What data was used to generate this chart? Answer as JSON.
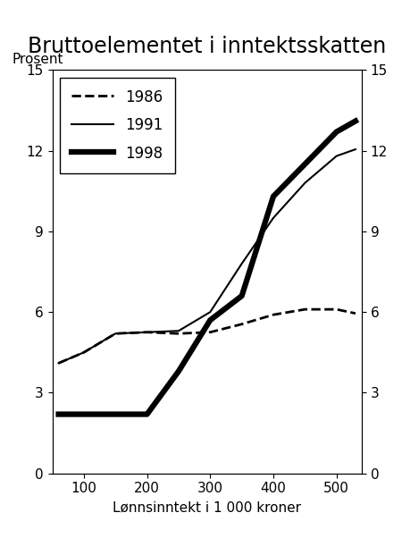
{
  "title": "Bruttoelementet i inntektsskatten",
  "ylabel_left": "Prosent",
  "xlabel": "Lønnsinntekt i 1 000 kroner",
  "ylim": [
    0,
    15
  ],
  "yticks": [
    0,
    3,
    6,
    9,
    12,
    15
  ],
  "xlim": [
    50,
    540
  ],
  "xticks": [
    100,
    200,
    300,
    400,
    500
  ],
  "series": {
    "1986": {
      "x": [
        60,
        100,
        150,
        200,
        250,
        300,
        350,
        400,
        450,
        500,
        530
      ],
      "y": [
        4.1,
        4.5,
        5.2,
        5.25,
        5.2,
        5.25,
        5.55,
        5.9,
        6.1,
        6.1,
        5.95
      ],
      "linestyle": "dashed",
      "linewidth": 2.0,
      "color": "#000000"
    },
    "1991": {
      "x": [
        60,
        100,
        150,
        200,
        250,
        300,
        350,
        400,
        450,
        500,
        530
      ],
      "y": [
        4.1,
        4.5,
        5.2,
        5.25,
        5.3,
        6.0,
        7.8,
        9.5,
        10.8,
        11.8,
        12.05
      ],
      "linestyle": "solid",
      "linewidth": 1.5,
      "color": "#000000"
    },
    "1998": {
      "x": [
        60,
        100,
        150,
        200,
        250,
        300,
        350,
        400,
        450,
        500,
        530
      ],
      "y": [
        2.2,
        2.2,
        2.2,
        2.2,
        3.8,
        5.7,
        6.6,
        10.3,
        11.5,
        12.7,
        13.1
      ],
      "linestyle": "solid",
      "linewidth": 4.5,
      "color": "#000000"
    }
  },
  "legend_order": [
    "1986",
    "1991",
    "1998"
  ],
  "legend_styles": {
    "1986": {
      "linestyle": "dashed",
      "linewidth": 2.0
    },
    "1991": {
      "linestyle": "solid",
      "linewidth": 1.5
    },
    "1998": {
      "linestyle": "solid",
      "linewidth": 4.5
    }
  },
  "background_color": "#ffffff",
  "title_fontsize": 17,
  "label_fontsize": 11,
  "tick_fontsize": 11,
  "legend_fontsize": 12
}
